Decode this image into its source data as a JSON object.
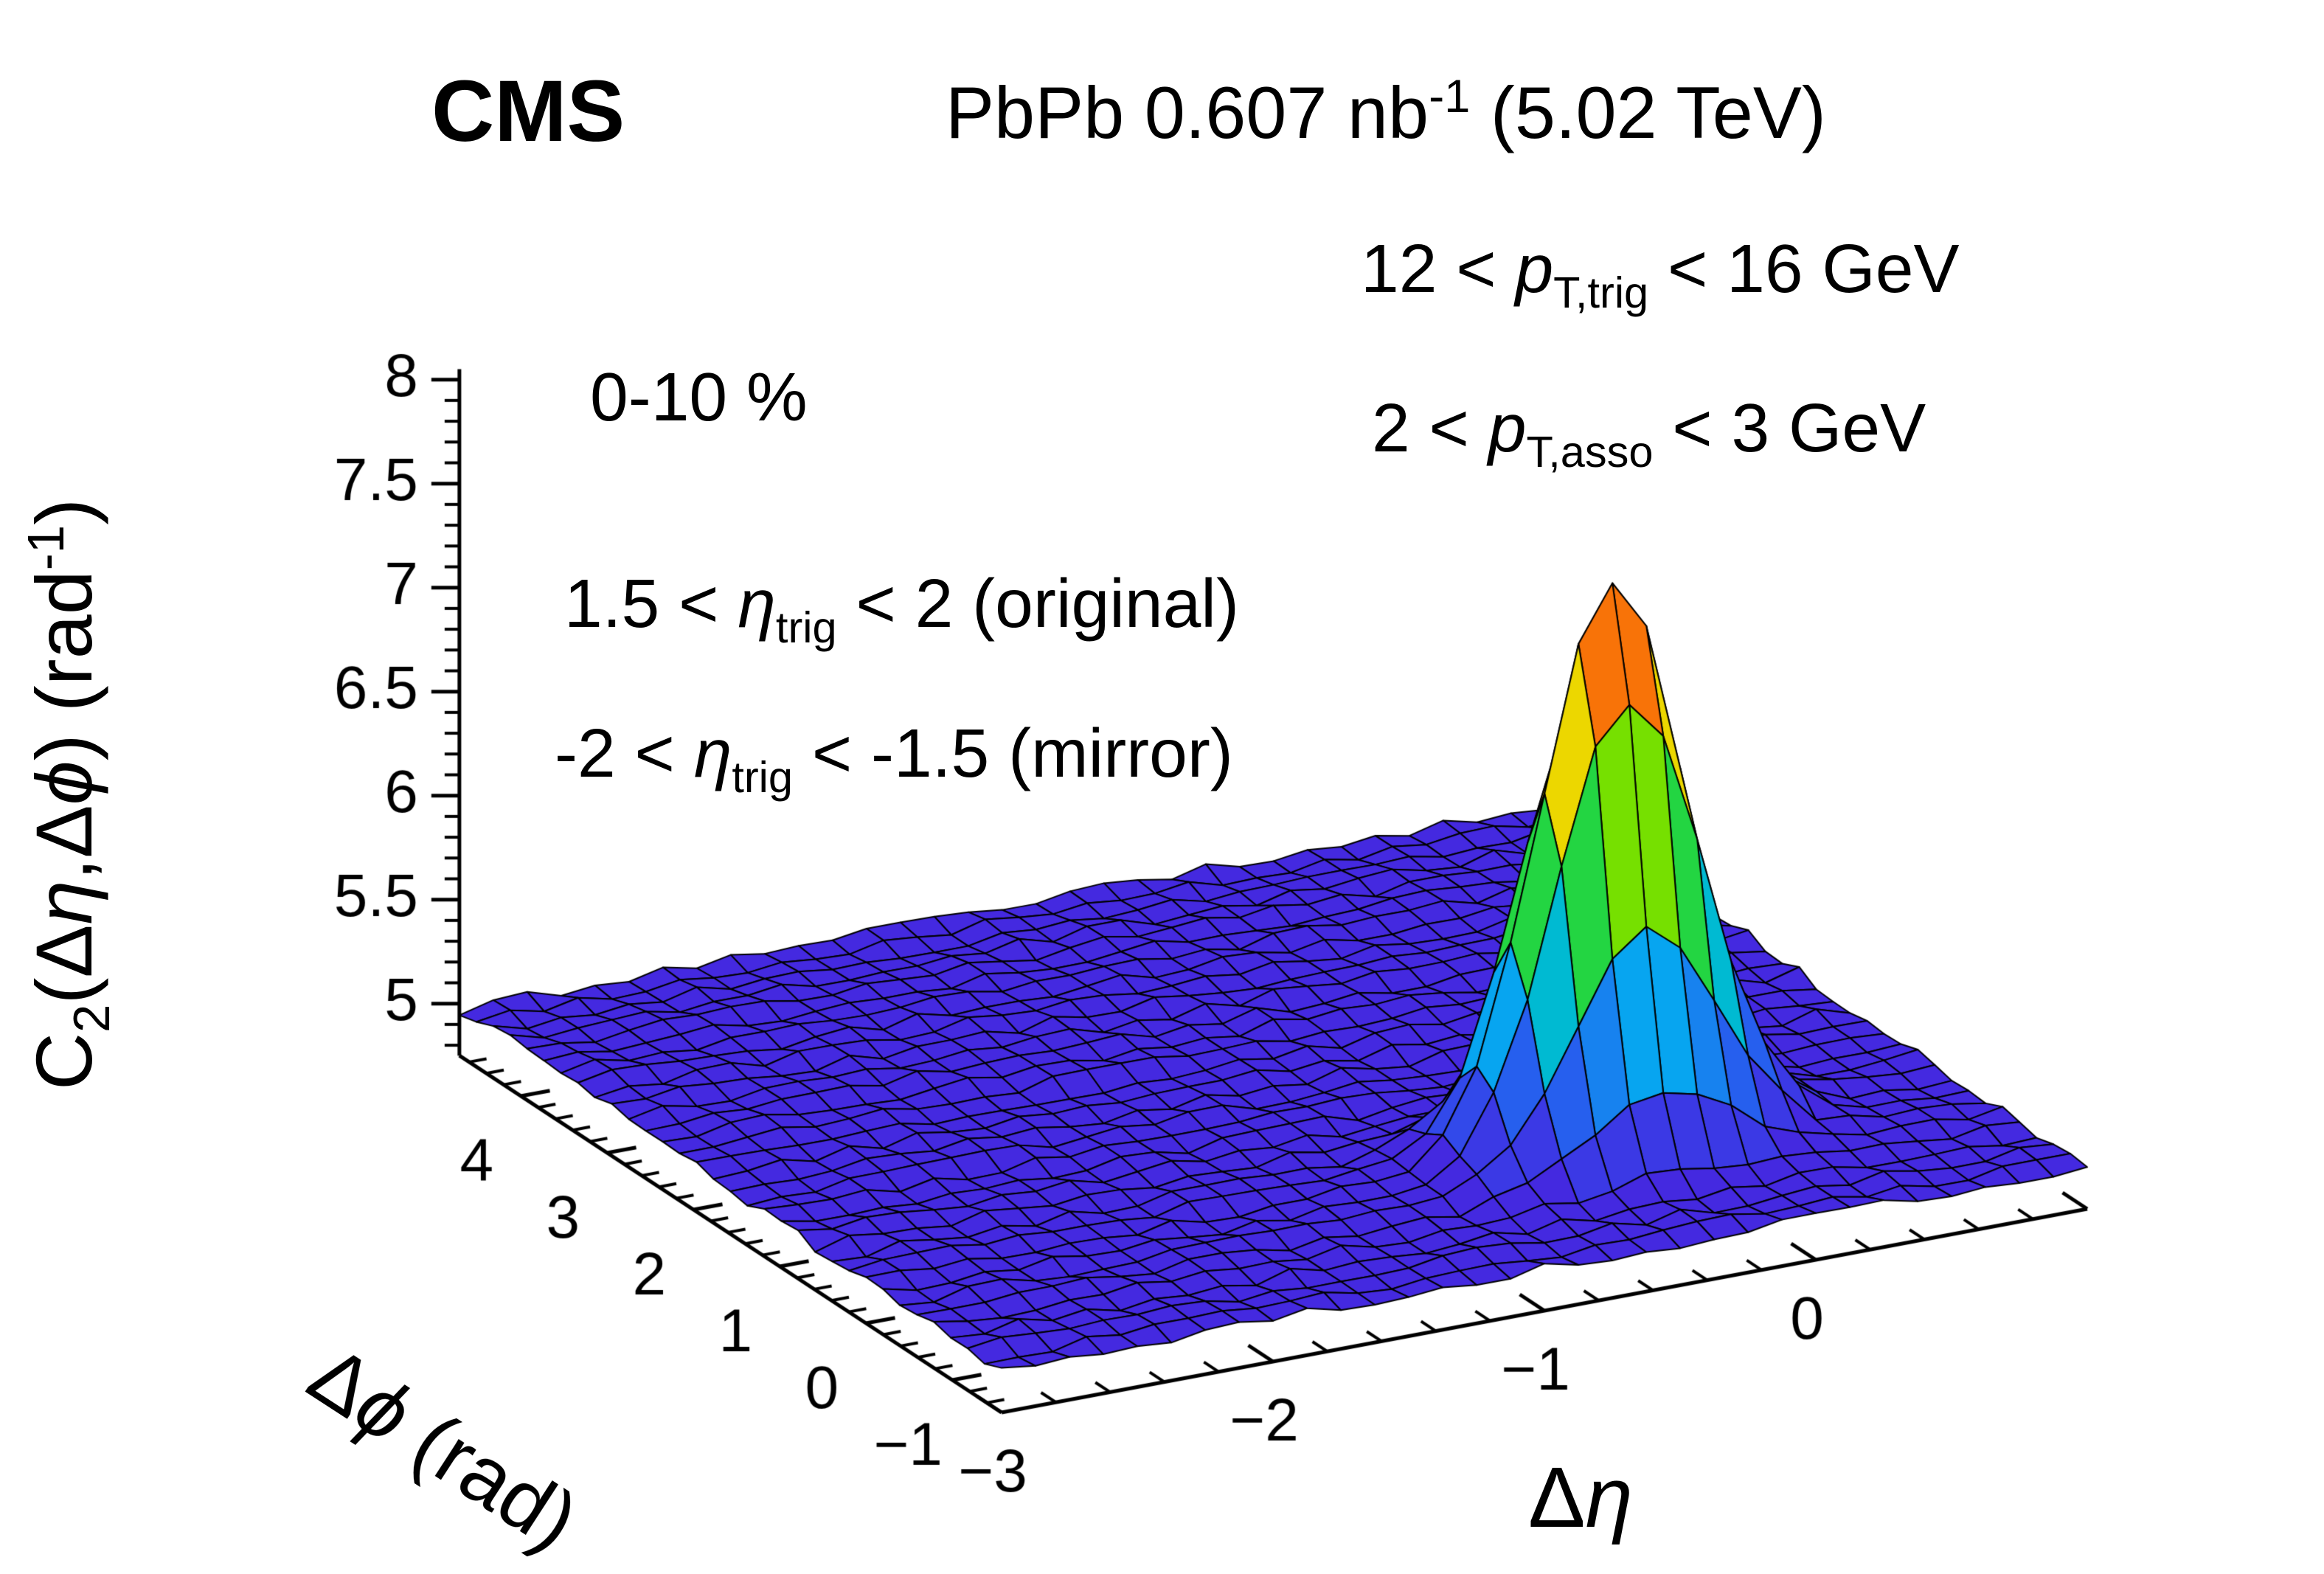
{
  "header": {
    "experiment": "CMS",
    "lumi_parts": [
      {
        "t": "PbPb 0.607 nb"
      },
      {
        "t": "-1",
        "s": "sup"
      },
      {
        "t": " (5.02 TeV)"
      }
    ]
  },
  "annotations": {
    "pt_trig_parts": [
      {
        "t": "12 < "
      },
      {
        "t": "p",
        "s": "it"
      },
      {
        "t": "T,trig",
        "s": "sub"
      },
      {
        "t": " < 16 GeV"
      }
    ],
    "pt_asso_parts": [
      {
        "t": "2 < "
      },
      {
        "t": "p",
        "s": "it"
      },
      {
        "t": "T,asso",
        "s": "sub"
      },
      {
        "t": " < 3 GeV"
      }
    ],
    "centrality": "0-10 %",
    "eta_range_original_parts": [
      {
        "t": "1.5 < "
      },
      {
        "t": "η",
        "s": "it"
      },
      {
        "t": "trig",
        "s": "sub"
      },
      {
        "t": " < 2 (original)"
      }
    ],
    "eta_range_mirror_parts": [
      {
        "t": "-2 < "
      },
      {
        "t": "η",
        "s": "it"
      },
      {
        "t": "trig",
        "s": "sub"
      },
      {
        "t": " < -1.5 (mirror)"
      }
    ]
  },
  "axes": {
    "x": {
      "title_parts": [
        {
          "t": "Δ"
        },
        {
          "t": "η",
          "s": "it"
        }
      ]
    },
    "y": {
      "title_parts": [
        {
          "t": "Δ"
        },
        {
          "t": "ϕ",
          "s": "it"
        },
        {
          "t": " (rad)"
        }
      ]
    },
    "z": {
      "title_parts": [
        {
          "t": "C"
        },
        {
          "t": "2",
          "s": "sub"
        },
        {
          "t": "(Δ"
        },
        {
          "t": "η",
          "s": "it"
        },
        {
          "t": ",Δ"
        },
        {
          "t": "ϕ",
          "s": "it"
        },
        {
          "t": ") (rad"
        },
        {
          "t": "-1",
          "s": "sup"
        },
        {
          "t": ")"
        }
      ]
    }
  },
  "chart_data": {
    "type": "surface",
    "xlabel": "Δη",
    "ylabel": "Δϕ (rad)",
    "zlabel": "C2(Δη,Δϕ) (rad-1)",
    "x_range": [
      -3,
      1
    ],
    "y_range": [
      -1.5708,
      4.7124
    ],
    "z_axis_range": [
      4.75,
      8.05
    ],
    "x_ticks": [
      -3,
      -2,
      -1,
      0
    ],
    "y_ticks": [
      -1,
      0,
      1,
      2,
      3,
      4
    ],
    "z_ticks": [
      5,
      5.5,
      6,
      6.5,
      7,
      7.5,
      8
    ],
    "x_minor_step": 0.2,
    "y_minor_step": 0.2,
    "z_minor_step": 0.1,
    "grid_bins": {
      "eta": 32,
      "phi": 32
    },
    "baseline_level": 4.95,
    "noise": {
      "amplitude": 0.028,
      "seed": 20
    },
    "near_side_peak": {
      "eta0": -0.25,
      "phi0": 0,
      "amplitude": 2.7,
      "sigma_eta": 0.27,
      "sigma_phi": 0.3
    },
    "away_side_ridge": {
      "phi0": 3.1416,
      "amplitude": 0.05,
      "sigma_phi": 1.2
    },
    "palette": [
      "#4429e0",
      "#2b55ee",
      "#00b4f0",
      "#00d060",
      "#70e000",
      "#e8e400",
      "#ff9000",
      "#e32020"
    ],
    "palette_bands": 20,
    "mesh_color": "#000000",
    "background": "#ffffff"
  }
}
